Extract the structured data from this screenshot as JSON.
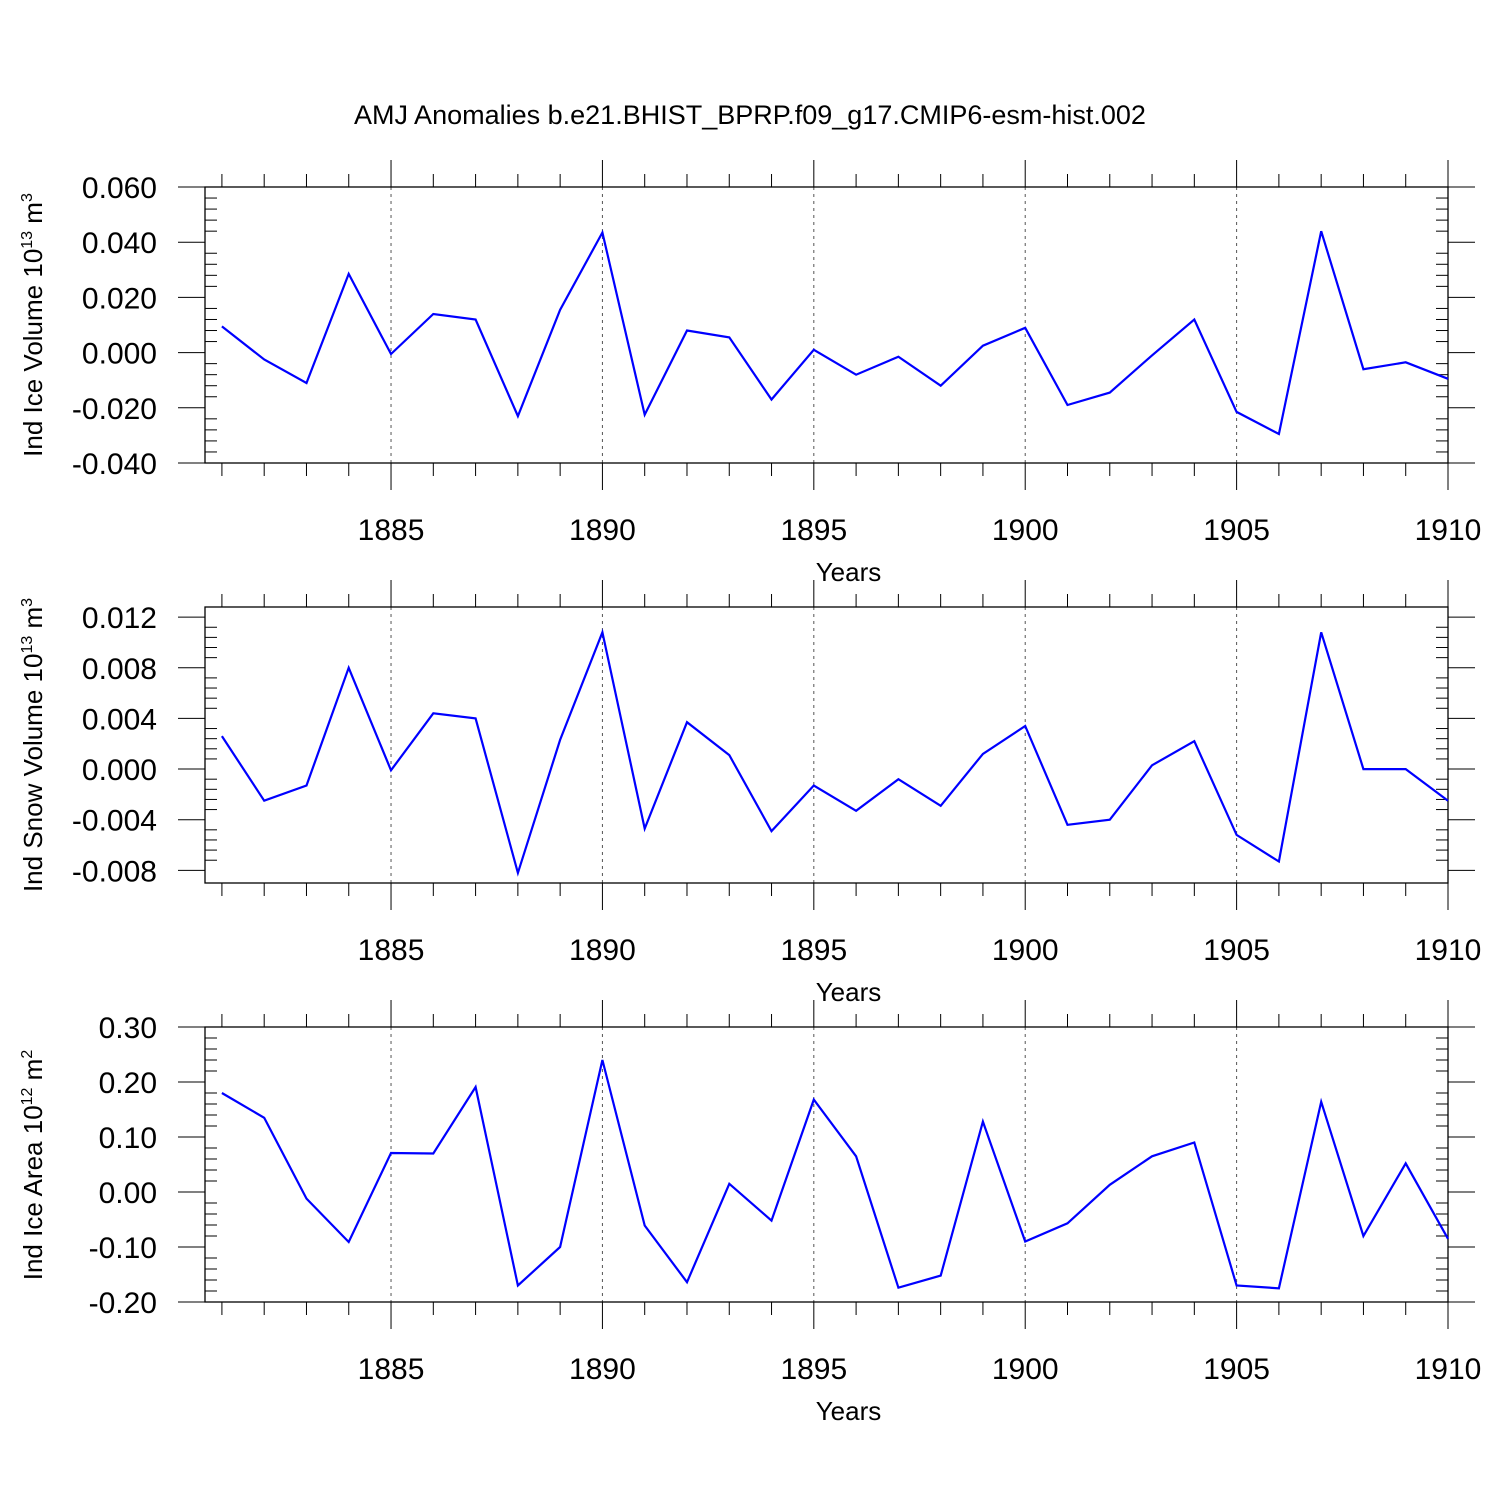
{
  "title": "AMJ Anomalies b.e21.BHIST_BPRP.f09_g17.CMIP6-esm-hist.002",
  "line_color": "#0000FF",
  "chart_data": [
    {
      "type": "line",
      "xlabel": "Years",
      "ylabel": {
        "main": "Ind Ice Volume 10",
        "sup1": "13",
        "mid": " m",
        "sup2": "3"
      },
      "xlim": [
        1880.6,
        1910
      ],
      "ylim": [
        -0.04,
        0.06
      ],
      "xticks": [
        "1885",
        "1890",
        "1895",
        "1900",
        "1905",
        "1910"
      ],
      "yticks": [
        "0.060",
        "0.040",
        "0.020",
        "0.000",
        "-0.020",
        "-0.040"
      ],
      "x": [
        1881,
        1882,
        1883,
        1884,
        1885,
        1886,
        1887,
        1888,
        1889,
        1890,
        1891,
        1892,
        1893,
        1894,
        1895,
        1896,
        1897,
        1898,
        1899,
        1900,
        1901,
        1902,
        1903,
        1904,
        1905,
        1906,
        1907,
        1908,
        1909,
        1910
      ],
      "values": [
        0.0095,
        -0.0025,
        -0.011,
        0.0285,
        -0.0005,
        0.014,
        0.012,
        -0.023,
        0.0155,
        0.0435,
        -0.0225,
        0.008,
        0.0055,
        -0.017,
        0.001,
        -0.008,
        -0.0015,
        -0.012,
        0.0025,
        0.009,
        -0.019,
        -0.0145,
        -0.001,
        0.012,
        -0.0215,
        -0.0295,
        0.044,
        -0.006,
        -0.0035,
        -0.0095
      ]
    },
    {
      "type": "line",
      "xlabel": "Years",
      "ylabel": {
        "main": "Ind Snow Volume 10",
        "sup1": "13",
        "mid": " m",
        "sup2": "3"
      },
      "xlim": [
        1880.6,
        1910
      ],
      "ylim": [
        -0.009,
        0.0128
      ],
      "xticks": [
        "1885",
        "1890",
        "1895",
        "1900",
        "1905",
        "1910"
      ],
      "yticks": [
        "0.012",
        "0.008",
        "0.004",
        "0.000",
        "-0.004",
        "-0.008"
      ],
      "x": [
        1881,
        1882,
        1883,
        1884,
        1885,
        1886,
        1887,
        1888,
        1889,
        1890,
        1891,
        1892,
        1893,
        1894,
        1895,
        1896,
        1897,
        1898,
        1899,
        1900,
        1901,
        1902,
        1903,
        1904,
        1905,
        1906,
        1907,
        1908,
        1909,
        1910
      ],
      "values": [
        0.0026,
        -0.0025,
        -0.0013,
        0.008,
        -0.0001,
        0.0044,
        0.004,
        -0.0082,
        0.0023,
        0.0108,
        -0.0047,
        0.0037,
        0.0011,
        -0.0049,
        -0.0013,
        -0.0033,
        -0.0008,
        -0.0029,
        0.0012,
        0.0034,
        -0.0044,
        -0.004,
        0.0003,
        0.0022,
        -0.0052,
        -0.0073,
        0.0108,
        0.0,
        0.0,
        -0.0025
      ]
    },
    {
      "type": "line",
      "xlabel": "Years",
      "ylabel": {
        "main": "Ind Ice Area 10",
        "sup1": "12",
        "mid": " m",
        "sup2": "2"
      },
      "xlim": [
        1880.6,
        1910
      ],
      "ylim": [
        -0.2,
        0.3
      ],
      "xticks": [
        "1885",
        "1890",
        "1895",
        "1900",
        "1905",
        "1910"
      ],
      "yticks": [
        "0.30",
        "0.20",
        "0.10",
        "0.00",
        "-0.10",
        "-0.20"
      ],
      "x": [
        1881,
        1882,
        1883,
        1884,
        1885,
        1886,
        1887,
        1888,
        1889,
        1890,
        1891,
        1892,
        1893,
        1894,
        1895,
        1896,
        1897,
        1898,
        1899,
        1900,
        1901,
        1902,
        1903,
        1904,
        1905,
        1906,
        1907,
        1908,
        1909,
        1910
      ],
      "values": [
        0.18,
        0.135,
        -0.012,
        -0.091,
        0.071,
        0.07,
        0.191,
        -0.17,
        -0.1,
        0.24,
        -0.061,
        -0.164,
        0.015,
        -0.052,
        0.168,
        0.065,
        -0.174,
        -0.152,
        0.128,
        -0.09,
        -0.057,
        0.013,
        0.065,
        0.09,
        -0.17,
        -0.175,
        0.164,
        -0.08,
        0.052,
        -0.085
      ]
    }
  ]
}
